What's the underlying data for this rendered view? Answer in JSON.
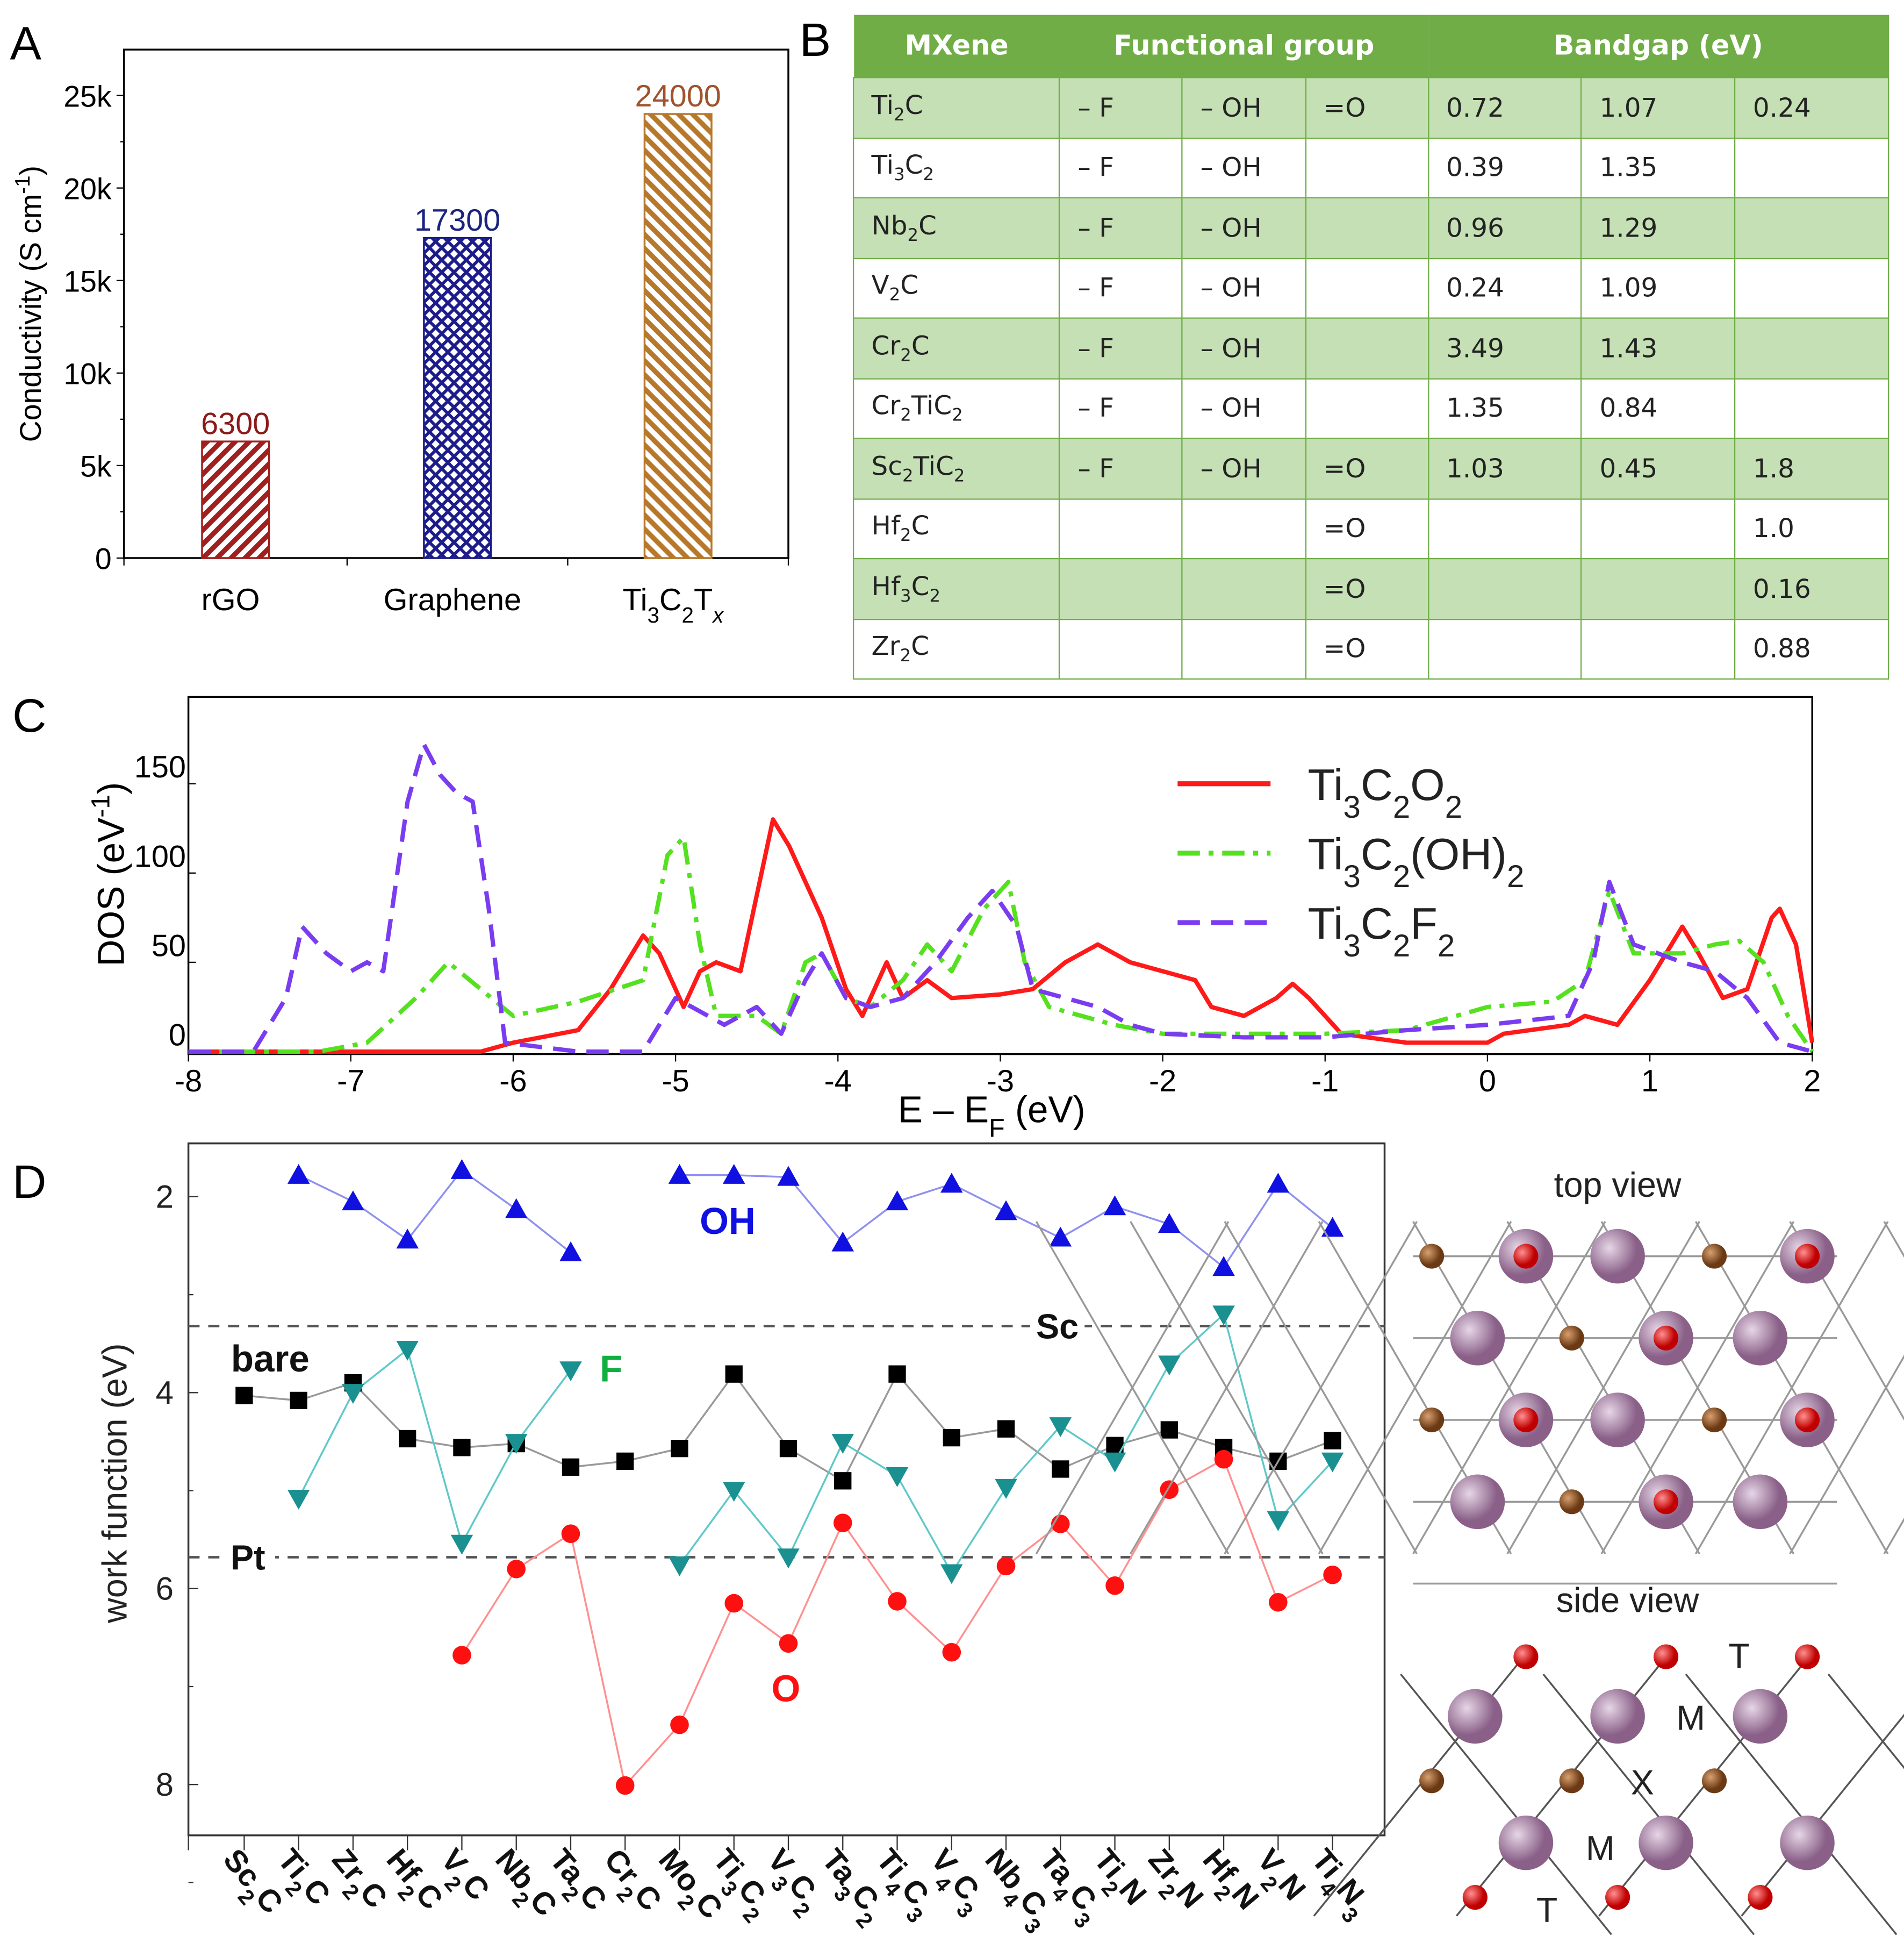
{
  "panels": {
    "a": "A",
    "b": "B",
    "c": "C",
    "d": "D"
  },
  "chart_data": [
    {
      "type": "bar",
      "panel": "A",
      "categories": [
        "rGO",
        "Graphene",
        "Ti3C2Tx"
      ],
      "values": [
        6300,
        17300,
        24000
      ],
      "data_labels": [
        "6300",
        "17300",
        "24000"
      ],
      "ylabel": "Conductivity (S cm-1)",
      "ylim": [
        0,
        27500
      ],
      "yticks": [
        "0",
        "5k",
        "10k",
        "15k",
        "20k",
        "25k"
      ],
      "ytick_values": [
        0,
        5000,
        10000,
        15000,
        20000,
        25000
      ],
      "colors": [
        "#a11f1f",
        "#1c1c8a",
        "#b8782a"
      ],
      "label_colors": [
        "#8b1a1a",
        "#1a237e",
        "#a0522d"
      ],
      "patterns": [
        "diagonal-hatch",
        "crosshatch",
        "diagonal-hatch"
      ]
    },
    {
      "type": "table",
      "panel": "B",
      "headers": [
        "MXene",
        "Functional group",
        "Bandgap (eV)"
      ],
      "rows": [
        [
          "Ti2C",
          "– F",
          "– OH",
          "=O",
          "0.72",
          "1.07",
          "0.24"
        ],
        [
          "Ti3C2",
          "– F",
          "– OH",
          "",
          "0.39",
          "1.35",
          ""
        ],
        [
          "Nb2C",
          "– F",
          "– OH",
          "",
          "0.96",
          "1.29",
          ""
        ],
        [
          "V2C",
          "– F",
          "– OH",
          "",
          "0.24",
          "1.09",
          ""
        ],
        [
          "Cr2C",
          "– F",
          "– OH",
          "",
          "3.49",
          "1.43",
          ""
        ],
        [
          "Cr2TiC2",
          "– F",
          "– OH",
          "",
          "1.35",
          "0.84",
          ""
        ],
        [
          "Sc2TiC2",
          "– F",
          "– OH",
          "=O",
          "1.03",
          "0.45",
          "1.8"
        ],
        [
          "Hf2C",
          "",
          "",
          "=O",
          "",
          "",
          "1.0"
        ],
        [
          "Hf3C2",
          "",
          "",
          "=O",
          "",
          "",
          "0.16"
        ],
        [
          "Zr2C",
          "",
          "",
          "=O",
          "",
          "",
          "0.88"
        ]
      ],
      "header_color": "#70ad47",
      "stripe_color": "#c5e0b4"
    },
    {
      "type": "line",
      "panel": "C",
      "xlabel": "E – EF (eV)",
      "ylabel": "DOS (eV-1)",
      "xlim": [
        -8,
        2
      ],
      "ylim": [
        -8,
        190
      ],
      "xticks": [
        -8,
        -7,
        -6,
        -5,
        -4,
        -3,
        -2,
        -1,
        0,
        1,
        2
      ],
      "yticks": [
        0,
        50,
        100,
        150
      ],
      "legend": "top-right",
      "series": [
        {
          "name": "Ti3C2O2",
          "color": "#ff1a1a",
          "dash": "solid",
          "points": [
            [
              -8,
              0
            ],
            [
              -6.2,
              0
            ],
            [
              -6,
              5
            ],
            [
              -5.6,
              12
            ],
            [
              -5.4,
              35
            ],
            [
              -5.2,
              65
            ],
            [
              -5.1,
              55
            ],
            [
              -4.95,
              25
            ],
            [
              -4.85,
              45
            ],
            [
              -4.75,
              50
            ],
            [
              -4.6,
              45
            ],
            [
              -4.4,
              130
            ],
            [
              -4.3,
              115
            ],
            [
              -4.1,
              75
            ],
            [
              -3.95,
              35
            ],
            [
              -3.85,
              20
            ],
            [
              -3.7,
              50
            ],
            [
              -3.6,
              30
            ],
            [
              -3.45,
              40
            ],
            [
              -3.3,
              30
            ],
            [
              -3,
              32
            ],
            [
              -2.8,
              35
            ],
            [
              -2.6,
              50
            ],
            [
              -2.4,
              60
            ],
            [
              -2.2,
              50
            ],
            [
              -2,
              45
            ],
            [
              -1.8,
              40
            ],
            [
              -1.7,
              25
            ],
            [
              -1.5,
              20
            ],
            [
              -1.3,
              30
            ],
            [
              -1.2,
              38
            ],
            [
              -1.1,
              30
            ],
            [
              -0.9,
              10
            ],
            [
              -0.5,
              5
            ],
            [
              0,
              5
            ],
            [
              0.1,
              10
            ],
            [
              0.5,
              15
            ],
            [
              0.6,
              20
            ],
            [
              0.8,
              15
            ],
            [
              1,
              40
            ],
            [
              1.2,
              70
            ],
            [
              1.3,
              55
            ],
            [
              1.45,
              30
            ],
            [
              1.6,
              35
            ],
            [
              1.75,
              75
            ],
            [
              1.8,
              80
            ],
            [
              1.9,
              60
            ],
            [
              2,
              5
            ]
          ]
        },
        {
          "name": "Ti3C2(OH)2",
          "color": "#55e020",
          "dash": "dashdot",
          "points": [
            [
              -8,
              0
            ],
            [
              -7.2,
              0
            ],
            [
              -6.9,
              5
            ],
            [
              -6.6,
              30
            ],
            [
              -6.4,
              50
            ],
            [
              -6.2,
              35
            ],
            [
              -6,
              20
            ],
            [
              -5.6,
              28
            ],
            [
              -5.2,
              40
            ],
            [
              -5.05,
              110
            ],
            [
              -4.95,
              120
            ],
            [
              -4.85,
              60
            ],
            [
              -4.75,
              20
            ],
            [
              -4.5,
              20
            ],
            [
              -4.35,
              10
            ],
            [
              -4.2,
              50
            ],
            [
              -4.1,
              55
            ],
            [
              -3.95,
              30
            ],
            [
              -3.8,
              25
            ],
            [
              -3.6,
              40
            ],
            [
              -3.45,
              60
            ],
            [
              -3.3,
              45
            ],
            [
              -3.1,
              80
            ],
            [
              -2.95,
              95
            ],
            [
              -2.85,
              50
            ],
            [
              -2.7,
              25
            ],
            [
              -2.5,
              20
            ],
            [
              -2.3,
              15
            ],
            [
              -2,
              10
            ],
            [
              -1.5,
              10
            ],
            [
              -1,
              10
            ],
            [
              -0.5,
              12
            ],
            [
              0,
              25
            ],
            [
              0.4,
              28
            ],
            [
              0.6,
              40
            ],
            [
              0.75,
              90
            ],
            [
              0.9,
              55
            ],
            [
              1.2,
              55
            ],
            [
              1.4,
              60
            ],
            [
              1.55,
              62
            ],
            [
              1.7,
              50
            ],
            [
              1.85,
              20
            ],
            [
              2,
              0
            ]
          ]
        },
        {
          "name": "Ti3C2F2",
          "color": "#7a3cf0",
          "dash": "dashed",
          "points": [
            [
              -8,
              0
            ],
            [
              -7.6,
              0
            ],
            [
              -7.4,
              30
            ],
            [
              -7.3,
              70
            ],
            [
              -7.15,
              55
            ],
            [
              -7,
              45
            ],
            [
              -6.9,
              50
            ],
            [
              -6.8,
              45
            ],
            [
              -6.65,
              140
            ],
            [
              -6.55,
              172
            ],
            [
              -6.45,
              155
            ],
            [
              -6.35,
              145
            ],
            [
              -6.25,
              140
            ],
            [
              -6.15,
              80
            ],
            [
              -6.05,
              5
            ],
            [
              -5.6,
              0
            ],
            [
              -5.2,
              0
            ],
            [
              -5,
              30
            ],
            [
              -4.9,
              25
            ],
            [
              -4.7,
              15
            ],
            [
              -4.5,
              25
            ],
            [
              -4.35,
              10
            ],
            [
              -4.2,
              40
            ],
            [
              -4.1,
              55
            ],
            [
              -3.95,
              30
            ],
            [
              -3.8,
              25
            ],
            [
              -3.6,
              30
            ],
            [
              -3.4,
              50
            ],
            [
              -3.2,
              75
            ],
            [
              -3.05,
              90
            ],
            [
              -2.9,
              70
            ],
            [
              -2.8,
              35
            ],
            [
              -2.6,
              30
            ],
            [
              -2.4,
              25
            ],
            [
              -2.2,
              15
            ],
            [
              -2,
              10
            ],
            [
              -1.5,
              8
            ],
            [
              -1,
              8
            ],
            [
              -0.5,
              12
            ],
            [
              0,
              15
            ],
            [
              0.5,
              20
            ],
            [
              0.65,
              50
            ],
            [
              0.75,
              95
            ],
            [
              0.9,
              60
            ],
            [
              1.2,
              50
            ],
            [
              1.4,
              45
            ],
            [
              1.6,
              30
            ],
            [
              1.8,
              5
            ],
            [
              2,
              0
            ]
          ]
        }
      ]
    },
    {
      "type": "line",
      "panel": "D",
      "ylabel": "work function (eV)",
      "ylim": [
        1.5,
        8.5
      ],
      "yreversed": true,
      "yticks": [
        2,
        4,
        6,
        8
      ],
      "categories": [
        "Sc2C",
        "Ti2C",
        "Zr2C",
        "Hf2C",
        "V2C",
        "Nb2C",
        "Ta2C",
        "Cr2C",
        "Mo2C",
        "Ti3C2",
        "V3C2",
        "Ta3C2",
        "Ti4C3",
        "V4C3",
        "Nb4C3",
        "Ta4C3",
        "Ti2N",
        "Zr2N",
        "Hf2N",
        "V2N",
        "Ti4N3"
      ],
      "reference_lines": [
        {
          "label": "Sc",
          "value": 3.32
        },
        {
          "label": "Pt",
          "value": 5.68
        }
      ],
      "series": [
        {
          "name": "OH",
          "marker": "triangle-up",
          "color": "#1010e0",
          "line_color": "#9090f0",
          "values": [
            null,
            1.78,
            2.05,
            2.44,
            1.73,
            2.13,
            2.57,
            null,
            1.78,
            1.78,
            1.8,
            2.47,
            2.05,
            1.87,
            2.15,
            2.42,
            2.1,
            2.28,
            2.72,
            1.87,
            2.32
          ]
        },
        {
          "name": "bare",
          "marker": "square",
          "color": "#000000",
          "line_color": "#999999",
          "values": [
            4.03,
            4.08,
            3.9,
            4.47,
            4.56,
            4.52,
            4.76,
            4.7,
            4.57,
            3.81,
            4.57,
            4.9,
            3.81,
            4.46,
            4.37,
            4.78,
            4.54,
            4.38,
            4.56,
            4.7,
            4.49
          ]
        },
        {
          "name": "F",
          "marker": "triangle-down",
          "color": "#1a9090",
          "line_color": "#60c8c8",
          "label_color": "#10b040",
          "values": [
            null,
            5.08,
            4.0,
            3.56,
            5.54,
            4.51,
            3.77,
            null,
            5.76,
            5.0,
            5.68,
            4.51,
            4.85,
            5.84,
            4.97,
            4.34,
            4.7,
            3.71,
            3.2,
            5.3,
            4.7
          ]
        },
        {
          "name": "O",
          "marker": "circle",
          "color": "#ff1010",
          "line_color": "#ff9090",
          "values": [
            null,
            null,
            null,
            null,
            6.68,
            5.8,
            5.44,
            8.01,
            7.39,
            6.15,
            6.56,
            5.33,
            6.13,
            6.65,
            5.77,
            5.34,
            5.97,
            4.99,
            4.68,
            6.14,
            5.86
          ]
        }
      ]
    }
  ],
  "structure": {
    "top_view": "top view",
    "side_view": "side view",
    "labels": {
      "t1": "T",
      "m1": "M",
      "x": "X",
      "m2": "M",
      "t2": "T"
    },
    "colors": {
      "metal": "#a07ea0",
      "carbon": "#8b5a2b",
      "termination": "#e01010"
    }
  }
}
